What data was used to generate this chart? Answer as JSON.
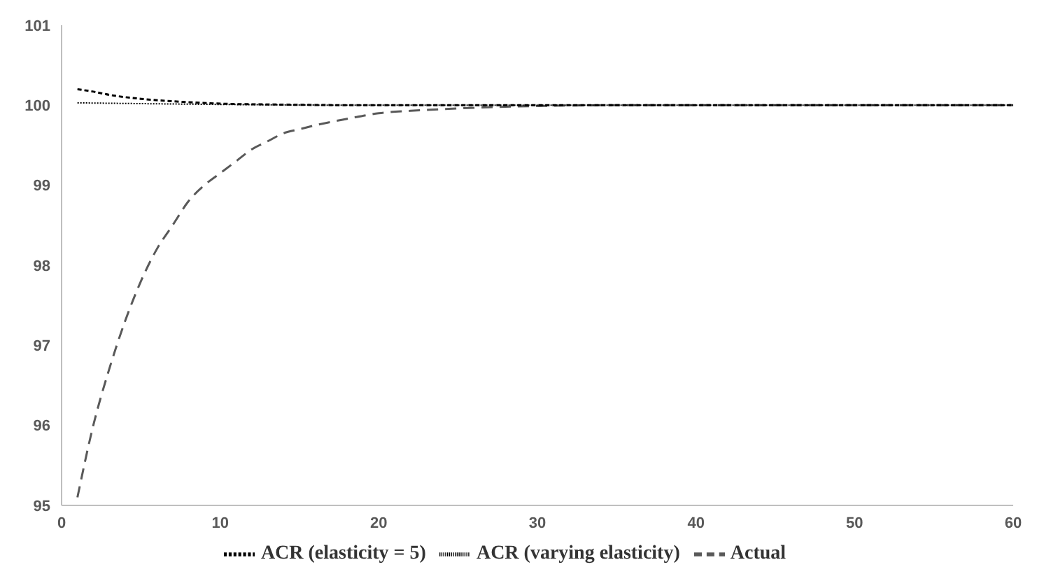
{
  "chart_data": {
    "type": "line",
    "xlim": [
      0,
      60
    ],
    "xticks": [
      0,
      10,
      20,
      30,
      40,
      50,
      60
    ],
    "ylim": [
      95,
      101
    ],
    "yticks": [
      95,
      96,
      97,
      98,
      99,
      100,
      101
    ],
    "grid": false,
    "legend": "bottom",
    "marker": "none",
    "series": [
      {
        "name": "Actual",
        "color": "#595959",
        "line_style": "dashed",
        "x": [
          1,
          2,
          3,
          4,
          5,
          6,
          7,
          8,
          9,
          10,
          11,
          12,
          13,
          14,
          15,
          16,
          18,
          20,
          22,
          25,
          30,
          35,
          60
        ],
        "values": [
          95.1,
          96.0,
          96.7,
          97.3,
          97.8,
          98.2,
          98.5,
          98.8,
          99.0,
          99.15,
          99.3,
          99.45,
          99.55,
          99.65,
          99.7,
          99.75,
          99.83,
          99.9,
          99.93,
          99.96,
          99.99,
          100,
          100
        ]
      },
      {
        "name": "ACR (elasticity = 5)",
        "color": "#000000",
        "line_style": "dashed",
        "x": [
          1,
          2,
          3,
          5,
          7,
          10,
          13,
          20,
          60
        ],
        "values": [
          100.2,
          100.17,
          100.13,
          100.08,
          100.05,
          100.02,
          100.01,
          100,
          100
        ]
      },
      {
        "name": "ACR (varying elasticity)",
        "color": "#000000",
        "line_style": "dotted",
        "x": [
          1,
          10,
          20,
          60
        ],
        "values": [
          100.03,
          100.01,
          100,
          100
        ]
      }
    ]
  }
}
